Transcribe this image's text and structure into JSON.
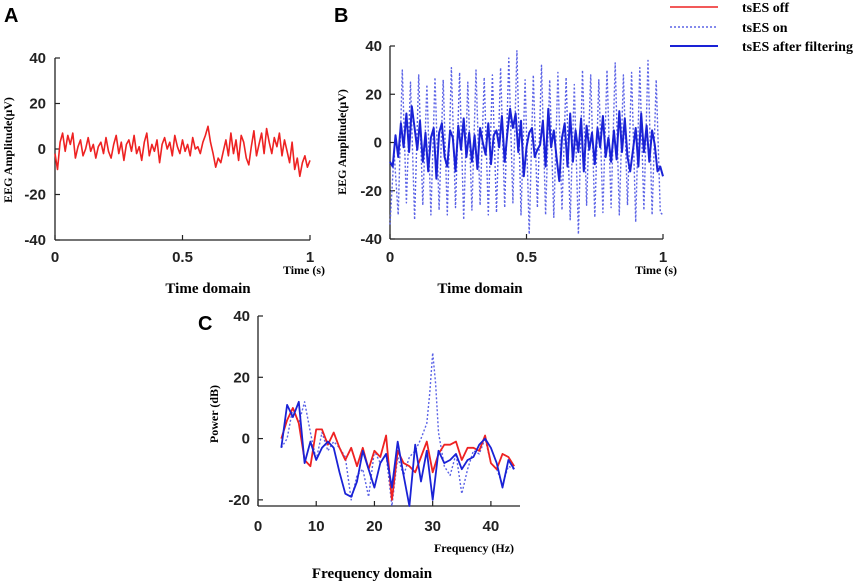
{
  "colors": {
    "off": "#ee2222",
    "on": "#5b63e6",
    "filtered": "#1a22d6",
    "axis": "#222222"
  },
  "legend": [
    {
      "key": "off",
      "label": "tsES off",
      "style": "solid"
    },
    {
      "key": "on",
      "label": "tsES on",
      "style": "dotted"
    },
    {
      "key": "filtered",
      "label": "tsES after filtering",
      "style": "solid"
    }
  ],
  "chart_data": [
    {
      "panel": "A",
      "type": "line",
      "caption": "Time domain",
      "xlabel": "Time (s)",
      "ylabel": "EEG Amplitude(μV)",
      "xlim": [
        0,
        1
      ],
      "ylim": [
        -40,
        40
      ],
      "xticks": [
        "0",
        "0.5",
        "1"
      ],
      "yticks": [
        "40",
        "20",
        "0",
        "-20",
        "-40"
      ],
      "series": [
        {
          "name": "tsES off",
          "key": "off",
          "style": "solid",
          "width": 1.6,
          "x": [
            0,
            0.01,
            0.02,
            0.03,
            0.04,
            0.05,
            0.06,
            0.07,
            0.08,
            0.09,
            0.1,
            0.11,
            0.12,
            0.13,
            0.14,
            0.15,
            0.16,
            0.17,
            0.18,
            0.19,
            0.2,
            0.21,
            0.22,
            0.23,
            0.24,
            0.25,
            0.26,
            0.27,
            0.28,
            0.29,
            0.3,
            0.31,
            0.32,
            0.33,
            0.34,
            0.35,
            0.36,
            0.37,
            0.38,
            0.39,
            0.4,
            0.41,
            0.42,
            0.43,
            0.44,
            0.45,
            0.46,
            0.47,
            0.48,
            0.49,
            0.5,
            0.51,
            0.52,
            0.53,
            0.54,
            0.55,
            0.56,
            0.57,
            0.58,
            0.59,
            0.6,
            0.61,
            0.62,
            0.63,
            0.64,
            0.65,
            0.66,
            0.67,
            0.68,
            0.69,
            0.7,
            0.71,
            0.72,
            0.73,
            0.74,
            0.75,
            0.76,
            0.77,
            0.78,
            0.79,
            0.8,
            0.81,
            0.82,
            0.83,
            0.84,
            0.85,
            0.86,
            0.87,
            0.88,
            0.89,
            0.9,
            0.91,
            0.92,
            0.93,
            0.94,
            0.95,
            0.96,
            0.97,
            0.98,
            0.99,
            1.0
          ],
          "values": [
            -2,
            -9,
            3,
            7,
            -1,
            6,
            2,
            7,
            -4,
            1,
            4,
            -3,
            0,
            5,
            -1,
            2,
            -4,
            1,
            3,
            -2,
            5,
            -1,
            -4,
            2,
            6,
            -2,
            3,
            -5,
            2,
            4,
            -1,
            6,
            -2,
            1,
            -5,
            3,
            7,
            -3,
            2,
            -1,
            4,
            -6,
            2,
            5,
            0,
            3,
            -3,
            6,
            1,
            -2,
            4,
            -1,
            2,
            -3,
            5,
            0,
            1,
            -2,
            3,
            6,
            10,
            3,
            -2,
            -8,
            -4,
            -6,
            -1,
            4,
            -3,
            7,
            -2,
            4,
            -5,
            6,
            3,
            -4,
            -7,
            1,
            8,
            -3,
            2,
            7,
            -2,
            9,
            3,
            -2,
            5,
            1,
            7,
            -3,
            4,
            -1,
            -6,
            3,
            -9,
            -4,
            -12,
            -6,
            -3,
            -8,
            -5
          ]
        }
      ]
    },
    {
      "panel": "B",
      "type": "line",
      "caption": "Time domain",
      "xlabel": "Time (s)",
      "ylabel": "EEG Amplitude(μV)",
      "xlim": [
        0,
        1
      ],
      "ylim": [
        -40,
        40
      ],
      "xticks": [
        "0",
        "0.5",
        "1"
      ],
      "yticks": [
        "40",
        "20",
        "0",
        "-20",
        "-40"
      ],
      "series": [
        {
          "name": "tsES on",
          "key": "on",
          "style": "dotted",
          "width": 1.4,
          "x": [
            0,
            0.015,
            0.03,
            0.045,
            0.06,
            0.075,
            0.09,
            0.105,
            0.12,
            0.135,
            0.15,
            0.165,
            0.18,
            0.195,
            0.21,
            0.225,
            0.24,
            0.255,
            0.27,
            0.285,
            0.3,
            0.315,
            0.33,
            0.345,
            0.36,
            0.375,
            0.39,
            0.405,
            0.42,
            0.435,
            0.45,
            0.465,
            0.48,
            0.495,
            0.51,
            0.525,
            0.54,
            0.555,
            0.57,
            0.585,
            0.6,
            0.615,
            0.63,
            0.645,
            0.66,
            0.675,
            0.69,
            0.705,
            0.72,
            0.735,
            0.75,
            0.765,
            0.78,
            0.795,
            0.81,
            0.825,
            0.84,
            0.855,
            0.87,
            0.885,
            0.9,
            0.915,
            0.93,
            0.945,
            0.96,
            0.975,
            0.99,
            1.0
          ],
          "values": [
            -34,
            -4,
            -30,
            30,
            -25,
            25,
            -32,
            28,
            -26,
            24,
            -30,
            27,
            -28,
            26,
            -30,
            31,
            -27,
            29,
            -32,
            25,
            -28,
            30,
            -26,
            27,
            -30,
            28,
            -29,
            31,
            -27,
            35,
            -25,
            38,
            -30,
            26,
            -38,
            28,
            -27,
            32,
            -30,
            26,
            -31,
            29,
            -28,
            27,
            -32,
            24,
            -38,
            30,
            -26,
            28,
            -31,
            26,
            -29,
            30,
            -27,
            33,
            -30,
            28,
            -26,
            29,
            -33,
            31,
            -28,
            34,
            -30,
            26,
            -29,
            -30
          ]
        },
        {
          "name": "tsES after filtering",
          "key": "filtered",
          "style": "solid",
          "width": 2.0,
          "x": [
            0,
            0.01,
            0.02,
            0.03,
            0.04,
            0.05,
            0.06,
            0.07,
            0.08,
            0.09,
            0.1,
            0.11,
            0.12,
            0.13,
            0.14,
            0.15,
            0.16,
            0.17,
            0.18,
            0.19,
            0.2,
            0.21,
            0.22,
            0.23,
            0.24,
            0.25,
            0.26,
            0.27,
            0.28,
            0.29,
            0.3,
            0.31,
            0.32,
            0.33,
            0.34,
            0.35,
            0.36,
            0.37,
            0.38,
            0.39,
            0.4,
            0.41,
            0.42,
            0.43,
            0.44,
            0.45,
            0.46,
            0.47,
            0.48,
            0.49,
            0.5,
            0.51,
            0.52,
            0.53,
            0.54,
            0.55,
            0.56,
            0.57,
            0.58,
            0.59,
            0.6,
            0.61,
            0.62,
            0.63,
            0.64,
            0.65,
            0.66,
            0.67,
            0.68,
            0.69,
            0.7,
            0.71,
            0.72,
            0.73,
            0.74,
            0.75,
            0.76,
            0.77,
            0.78,
            0.79,
            0.8,
            0.81,
            0.82,
            0.83,
            0.84,
            0.85,
            0.86,
            0.87,
            0.88,
            0.89,
            0.9,
            0.91,
            0.92,
            0.93,
            0.94,
            0.95,
            0.96,
            0.97,
            0.98,
            0.99,
            1.0
          ],
          "values": [
            -8,
            -10,
            3,
            -6,
            8,
            -2,
            12,
            -4,
            15,
            6,
            -3,
            9,
            -8,
            4,
            -12,
            2,
            6,
            -15,
            4,
            8,
            -6,
            -10,
            5,
            2,
            -12,
            7,
            -3,
            10,
            -6,
            4,
            -8,
            3,
            -11,
            6,
            0,
            -5,
            8,
            -9,
            3,
            5,
            -2,
            11,
            -8,
            4,
            14,
            6,
            12,
            -4,
            9,
            -14,
            -2,
            4,
            6,
            -6,
            -3,
            -1,
            9,
            -10,
            14,
            -2,
            5,
            -6,
            -16,
            2,
            8,
            -10,
            12,
            -8,
            5,
            -4,
            10,
            -12,
            7,
            -3,
            4,
            -9,
            6,
            -2,
            11,
            -6,
            2,
            -8,
            5,
            -7,
            13,
            -4,
            10,
            -6,
            -12,
            -3,
            6,
            -10,
            12,
            -4,
            7,
            -8,
            5,
            -1,
            -12,
            -10,
            -14
          ]
        }
      ]
    },
    {
      "panel": "C",
      "type": "line",
      "caption": "Frequency domain",
      "xlabel": "Frequency (Hz)",
      "ylabel": "Power (dB)",
      "xlim": [
        0,
        45
      ],
      "ylim": [
        -22,
        40
      ],
      "xticks": [
        "0",
        "10",
        "20",
        "30",
        "40"
      ],
      "yticks": [
        "40",
        "20",
        "0",
        "-20"
      ],
      "series": [
        {
          "name": "tsES on",
          "key": "on",
          "style": "dotted",
          "width": 1.4,
          "x": [
            4,
            5,
            6,
            7,
            8,
            9,
            10,
            11,
            12,
            13,
            14,
            15,
            16,
            17,
            18,
            19,
            20,
            21,
            22,
            23,
            24,
            25,
            26,
            27,
            28,
            29,
            29.5,
            30,
            30.5,
            31,
            32,
            33,
            34,
            35,
            36,
            37,
            38,
            39,
            40,
            41,
            42,
            43,
            44
          ],
          "values": [
            -3,
            0,
            10,
            5,
            12,
            2,
            -7,
            2,
            -4,
            -1,
            -3,
            -6,
            -20,
            -12,
            -10,
            -19,
            -4,
            -8,
            -5,
            -22,
            -6,
            -12,
            -6,
            -4,
            0,
            5,
            15,
            28,
            18,
            2,
            -9,
            -12,
            -5,
            -18,
            -10,
            -4,
            -5,
            0,
            -8,
            -10,
            -15,
            -9,
            -10
          ]
        },
        {
          "name": "tsES off",
          "key": "off",
          "style": "solid",
          "width": 1.8,
          "x": [
            4,
            5,
            6,
            7,
            8,
            9,
            10,
            11,
            12,
            13,
            14,
            15,
            16,
            17,
            18,
            19,
            20,
            21,
            22,
            23,
            24,
            25,
            26,
            27,
            28,
            29,
            30,
            31,
            32,
            33,
            34,
            35,
            36,
            37,
            38,
            39,
            40,
            41,
            42,
            43,
            44
          ],
          "values": [
            0,
            6,
            10,
            5,
            -7,
            -9,
            3,
            3,
            -2,
            2,
            -3,
            -7,
            -3,
            -9,
            -3,
            -10,
            -4,
            -6,
            1,
            -20,
            -4,
            -8,
            -9,
            -11,
            -6,
            -1,
            -11,
            -5,
            -2,
            -2,
            -1,
            -7,
            -3,
            -3,
            -4,
            1,
            -8,
            -10,
            -5,
            -6,
            -9
          ]
        },
        {
          "name": "tsES after filtering",
          "key": "filtered",
          "style": "solid",
          "width": 1.8,
          "x": [
            4,
            5,
            6,
            7,
            8,
            9,
            10,
            11,
            12,
            13,
            14,
            15,
            16,
            17,
            18,
            19,
            20,
            21,
            22,
            23,
            24,
            25,
            26,
            27,
            28,
            29,
            30,
            31,
            32,
            33,
            34,
            35,
            36,
            37,
            38,
            39,
            40,
            41,
            42,
            43,
            44
          ],
          "values": [
            -3,
            11,
            7,
            12,
            -8,
            -1,
            -7,
            -3,
            -1,
            -3,
            -11,
            -18,
            -19,
            -14,
            -4,
            -10,
            -16,
            -8,
            -5,
            -16,
            -1,
            -12,
            -22,
            -2,
            -14,
            -4,
            -20,
            -4,
            -8,
            -7,
            -5,
            -10,
            -7,
            -6,
            -2,
            0,
            -3,
            -8,
            -16,
            -7,
            -10
          ]
        }
      ]
    }
  ]
}
